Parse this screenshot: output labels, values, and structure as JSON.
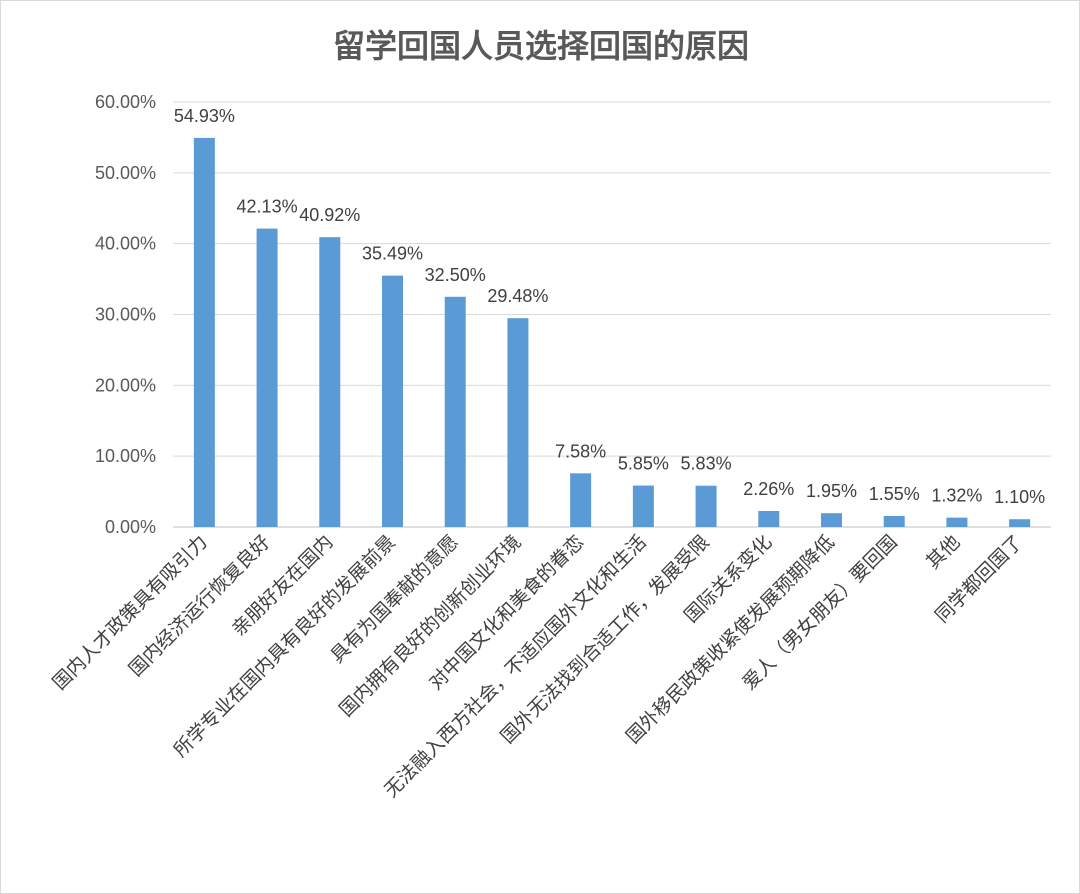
{
  "chart_data": {
    "type": "bar",
    "title": "留学回国人员选择回国的原因",
    "xlabel": "",
    "ylabel": "",
    "ylim": [
      0,
      60
    ],
    "yticks": [
      "0.00%",
      "10.00%",
      "20.00%",
      "30.00%",
      "40.00%",
      "50.00%",
      "60.00%"
    ],
    "grid": true,
    "legend": "none",
    "color": "#5b9bd5",
    "categories": [
      "国内人才政策具有吸引力",
      "国内经济运行恢复良好",
      "亲朋好友在国内",
      "所学专业在国内具有良好的发展前景",
      "具有为国奉献的意愿",
      "国内拥有良好的创新创业环境",
      "对中国文化和美食的眷恋",
      "无法融入西方社会，不适应国外文化和生活",
      "国外无法找到合适工作，发展受限",
      "国际关系变化",
      "国外移民政策收紧使发展预期降低",
      "爱人（男女朋友）要回国",
      "其他",
      "同学都回国了"
    ],
    "values": [
      54.93,
      42.13,
      40.92,
      35.49,
      32.5,
      29.48,
      7.58,
      5.85,
      5.83,
      2.26,
      1.95,
      1.55,
      1.32,
      1.1
    ],
    "data_labels": [
      "54.93%",
      "42.13%",
      "40.92%",
      "35.49%",
      "32.50%",
      "29.48%",
      "7.58%",
      "5.85%",
      "5.83%",
      "2.26%",
      "1.95%",
      "1.55%",
      "1.32%",
      "1.10%"
    ]
  }
}
